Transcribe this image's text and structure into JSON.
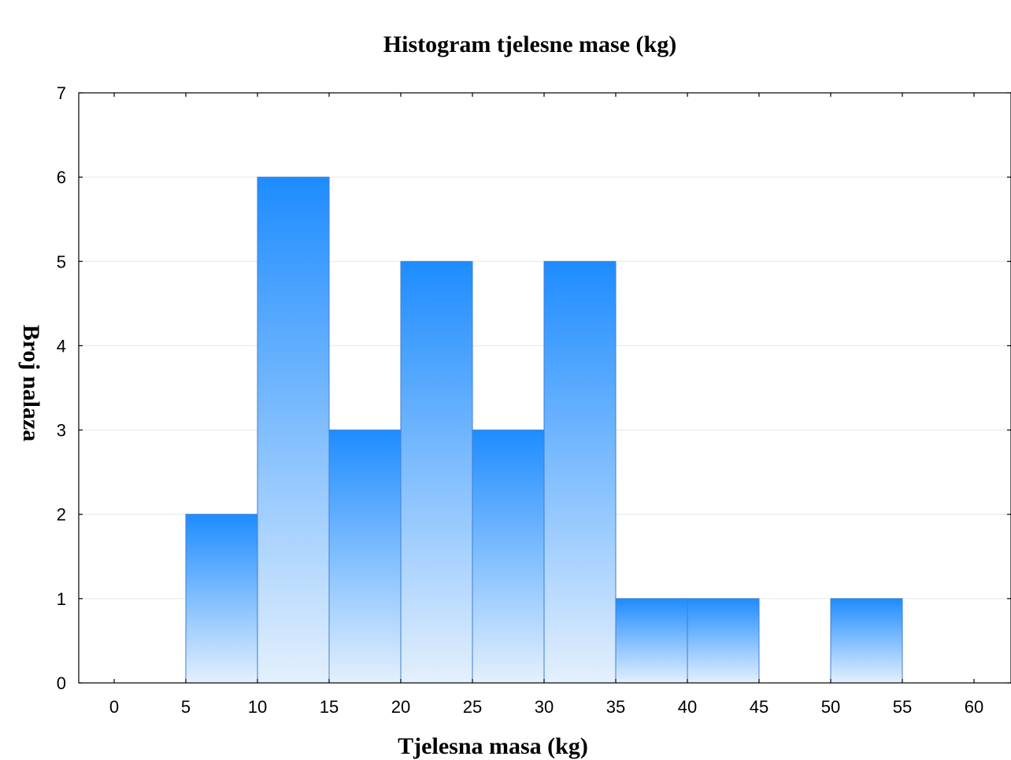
{
  "chart_data": {
    "type": "bar",
    "title": "Histogram tjelesne mase (kg)",
    "xlabel": "Tjelesna masa (kg)",
    "ylabel": "Broj nalaza",
    "bins": [
      {
        "from": 5,
        "to": 10,
        "count": 2
      },
      {
        "from": 10,
        "to": 15,
        "count": 6
      },
      {
        "from": 15,
        "to": 20,
        "count": 3
      },
      {
        "from": 20,
        "to": 25,
        "count": 5
      },
      {
        "from": 25,
        "to": 30,
        "count": 3
      },
      {
        "from": 30,
        "to": 35,
        "count": 5
      },
      {
        "from": 35,
        "to": 40,
        "count": 1
      },
      {
        "from": 40,
        "to": 45,
        "count": 1
      },
      {
        "from": 45,
        "to": 50,
        "count": 0
      },
      {
        "from": 50,
        "to": 55,
        "count": 1
      }
    ],
    "xlim": [
      0,
      60
    ],
    "ylim": [
      0,
      7
    ],
    "xticks": [
      "0",
      "5",
      "10",
      "15",
      "20",
      "25",
      "30",
      "35",
      "40",
      "45",
      "50",
      "55",
      "60"
    ],
    "yticks": [
      "0",
      "1",
      "2",
      "3",
      "4",
      "5",
      "6",
      "7"
    ],
    "grid": "horizontal",
    "legend": "none",
    "colors": {
      "bar_top": "#1e8cff",
      "bar_bottom": "#e4f0fd",
      "bar_stroke": "#3f7fd0",
      "grid": "#e6e6e6",
      "axis": "#000000",
      "background": "#ffffff"
    }
  }
}
